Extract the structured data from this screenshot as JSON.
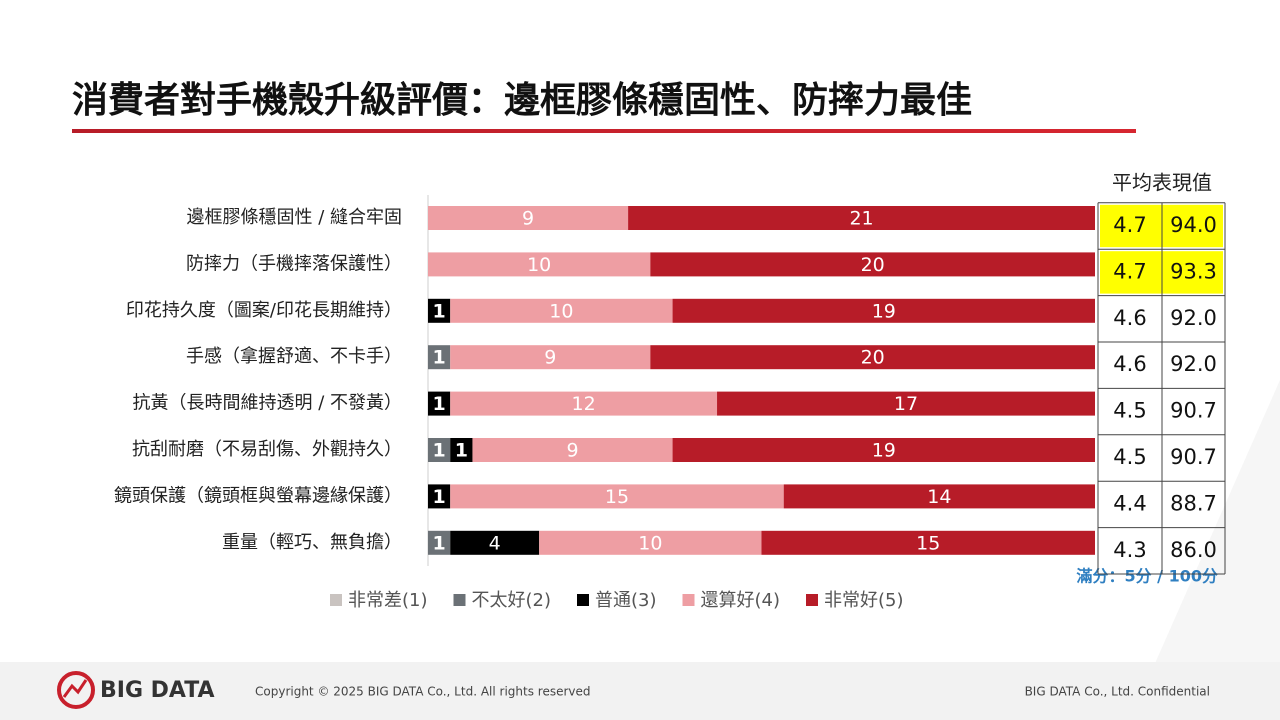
{
  "chart_data": {
    "type": "stacked-barh",
    "title": "消費者對手機殼升級評價：邊框膠條穩固性、防摔力最佳",
    "categories": [
      "邊框膠條穩固性 / 縫合牢固",
      "防摔力（手機摔落保護性）",
      "印花持久度（圖案/印花長期維持）",
      "手感（拿握舒適、不卡手）",
      "抗黃（長時間維持透明 / 不發黃）",
      "抗刮耐磨（不易刮傷、外觀持久）",
      "鏡頭保護（鏡頭框與螢幕邊緣保護）",
      "重量（輕巧、無負擔）"
    ],
    "series": [
      {
        "name": "非常差(1)",
        "color": "#c9c3c0",
        "values": [
          0,
          0,
          0,
          0,
          0,
          0,
          0,
          0
        ]
      },
      {
        "name": "不太好(2)",
        "color": "#6b7176",
        "values": [
          0,
          0,
          0,
          1,
          0,
          1,
          0,
          1
        ]
      },
      {
        "name": "普通(3)",
        "color": "#000000",
        "values": [
          0,
          0,
          1,
          0,
          1,
          1,
          1,
          4
        ]
      },
      {
        "name": "還算好(4)",
        "color": "#ee9ea3",
        "values": [
          9,
          10,
          10,
          9,
          12,
          9,
          15,
          10
        ]
      },
      {
        "name": "非常好(5)",
        "color": "#b71c28",
        "values": [
          21,
          20,
          19,
          20,
          17,
          19,
          14,
          15
        ]
      }
    ],
    "xlim": [
      0,
      30
    ]
  },
  "table": {
    "header": "平均表現值",
    "rows": [
      [
        "4.7",
        "94.0"
      ],
      [
        "4.7",
        "93.3"
      ],
      [
        "4.6",
        "92.0"
      ],
      [
        "4.6",
        "92.0"
      ],
      [
        "4.5",
        "90.7"
      ],
      [
        "4.5",
        "90.7"
      ],
      [
        "4.4",
        "88.7"
      ],
      [
        "4.3",
        "86.0"
      ]
    ],
    "highlight_rows": [
      0,
      1
    ],
    "highlight_color": "#ffff00",
    "note": "滿分：5分 / 100分"
  },
  "footer": {
    "logo": "BIG DATA",
    "copyright": "Copyright © 2025 BIG DATA Co., Ltd. All rights reserved",
    "confidential": "BIG DATA Co., Ltd. Confidential"
  }
}
